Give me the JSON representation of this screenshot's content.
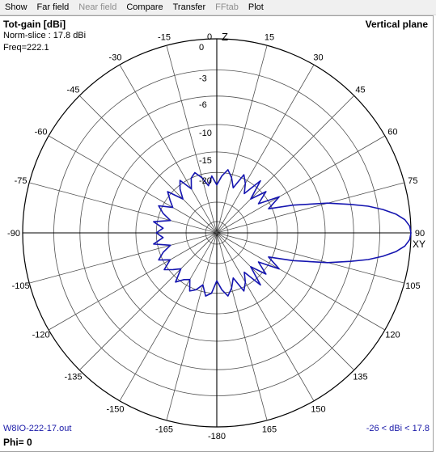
{
  "menu": [
    {
      "label": "Show",
      "enabled": true
    },
    {
      "label": "Far field",
      "enabled": true
    },
    {
      "label": "Near field",
      "enabled": false
    },
    {
      "label": "Compare",
      "enabled": true
    },
    {
      "label": "Transfer",
      "enabled": true
    },
    {
      "label": "FFtab",
      "enabled": false
    },
    {
      "label": "Plot",
      "enabled": true
    }
  ],
  "info": {
    "title": "Tot-gain [dBi]",
    "norm": "Norm-slice : 17.8 dBi",
    "freq": "Freq=222.1",
    "plane": "Vertical plane",
    "file": "W8IO-222-17.out",
    "phi": "Phi= 0",
    "range": "-26 < dBi < 17.8"
  },
  "axes": {
    "top": "Z",
    "right": "XY",
    "ring_labels": [
      "0",
      "-3",
      "-6",
      "-10",
      "-15",
      "-20"
    ],
    "angle_labels": [
      "0",
      "15",
      "30",
      "45",
      "60",
      "75",
      "90",
      "105",
      "120",
      "135",
      "150",
      "165",
      "-180",
      "-165",
      "-150",
      "-135",
      "-120",
      "-105",
      "-90",
      "-75",
      "-60",
      "-45",
      "-30",
      "-15"
    ]
  },
  "colors": {
    "pattern": "#1515b0",
    "grid": "#505050"
  },
  "chart_data": {
    "type": "polar",
    "title": "Tot-gain [dBi]",
    "unit": "dBi",
    "range_db": [
      -26,
      17.8
    ],
    "rings_db": [
      0,
      -3,
      -6,
      -10,
      -15,
      -20
    ],
    "main_lobe": {
      "angle_deg": 90,
      "gain_db": 0,
      "half_power_beamwidth_deg": 17
    },
    "pattern_db": {
      "angles_deg": [
        0,
        5,
        10,
        15,
        20,
        25,
        30,
        35,
        40,
        45,
        50,
        55,
        60,
        65,
        70,
        75,
        78,
        80,
        82,
        84,
        86,
        88,
        90,
        92,
        94,
        96,
        98,
        100,
        102,
        105,
        110,
        115,
        120,
        125,
        130,
        135,
        140,
        145,
        150,
        155,
        160,
        165,
        170,
        175,
        180,
        185,
        190,
        195,
        200,
        205,
        210,
        215,
        220,
        225,
        230,
        235,
        240,
        245,
        250,
        255,
        260,
        265,
        270,
        275,
        280,
        285,
        290,
        295,
        300,
        305,
        310,
        315,
        320,
        325,
        330,
        335,
        340,
        345,
        350,
        355
      ],
      "gain_db": [
        -24,
        -21,
        -19,
        -21,
        -24,
        -19,
        -21,
        -24,
        -18,
        -24,
        -19,
        -23,
        -17,
        -21,
        -15,
        -9,
        -6,
        -4,
        -2.5,
        -1.3,
        -0.5,
        -0.1,
        0,
        -0.1,
        -0.5,
        -1.3,
        -2.5,
        -4,
        -6,
        -9,
        -15,
        -21,
        -17,
        -23,
        -19,
        -24,
        -18,
        -24,
        -21,
        -19,
        -24,
        -21,
        -19,
        -21,
        -24,
        -20,
        -19,
        -22,
        -20,
        -19,
        -22,
        -21,
        -19,
        -23,
        -21,
        -19,
        -22,
        -19,
        -21,
        -24,
        -19,
        -22,
        -20,
        -22,
        -19,
        -24,
        -21,
        -19,
        -23,
        -21,
        -19,
        -24,
        -21,
        -19,
        -23,
        -20,
        -19,
        -21,
        -24,
        -21
      ]
    }
  }
}
